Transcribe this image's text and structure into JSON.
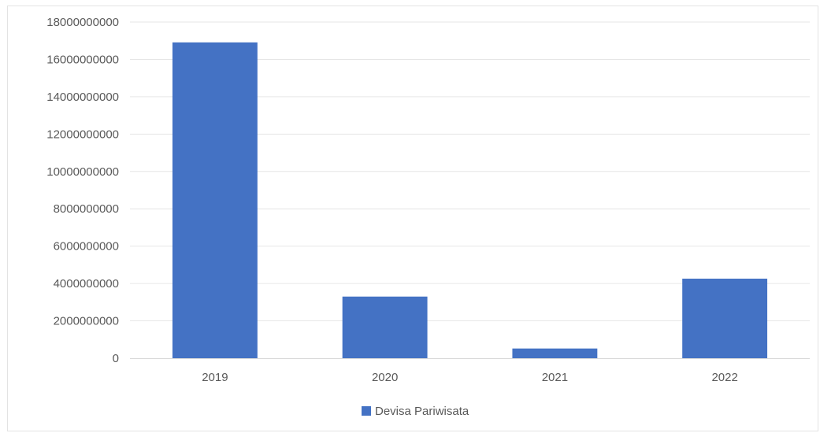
{
  "chart_data": {
    "type": "bar",
    "title": "",
    "xlabel": "",
    "ylabel": "",
    "categories": [
      "2019",
      "2020",
      "2021",
      "2022"
    ],
    "series": [
      {
        "name": "Devisa Pariwisata",
        "color": "#4472c4",
        "values": [
          16910000000,
          3300000000,
          520000000,
          4260000000
        ]
      }
    ],
    "ylim": [
      0,
      18000000000
    ],
    "yticks": [
      0,
      2000000000,
      4000000000,
      6000000000,
      8000000000,
      10000000000,
      12000000000,
      14000000000,
      16000000000,
      18000000000
    ],
    "ytick_labels": [
      "0",
      "2000000000",
      "4000000000",
      "6000000000",
      "8000000000",
      "10000000000",
      "12000000000",
      "14000000000",
      "16000000000",
      "18000000000"
    ],
    "grid": true,
    "legend_position": "bottom"
  }
}
